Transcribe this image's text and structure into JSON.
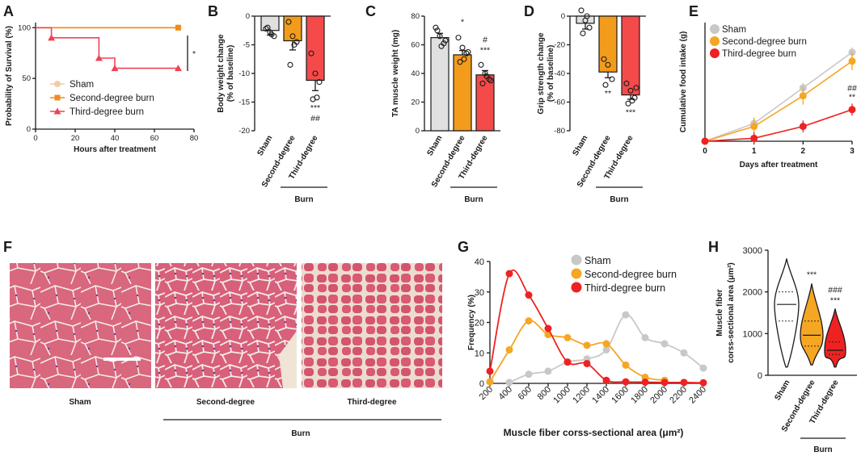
{
  "panels": {
    "A": {
      "label": "A"
    },
    "B": {
      "label": "B"
    },
    "C": {
      "label": "C"
    },
    "D": {
      "label": "D"
    },
    "E": {
      "label": "E"
    },
    "F": {
      "label": "F"
    },
    "G": {
      "label": "G"
    },
    "H": {
      "label": "H"
    }
  },
  "colors": {
    "sham": "#c8c8c8",
    "sham_bar": "#e0e0e0",
    "second": "#f5a623",
    "second_bar": "#f39c1b",
    "third": "#ee2222",
    "third_bar": "#f44a4a",
    "sham_survival": "#f0cda8",
    "second_survival": "#f08c1a",
    "third_survival": "#ee4455"
  },
  "histology": {
    "labels": [
      "Sham",
      "Second-degree",
      "Third-degree"
    ],
    "group_label": "Burn"
  },
  "chart_data": [
    {
      "id": "A",
      "type": "line",
      "subtype": "step",
      "xlabel": "Hours after treatment",
      "ylabel": "Probability of Survival (%)",
      "xlim": [
        0,
        80
      ],
      "ylim": [
        0,
        105
      ],
      "xticks": [
        "0",
        "20",
        "40",
        "60",
        "80"
      ],
      "yticks": [
        "0",
        "50",
        "100"
      ],
      "series": [
        {
          "name": "Sham",
          "x": [
            0,
            72
          ],
          "y": [
            100,
            100
          ]
        },
        {
          "name": "Second-degree burn",
          "x": [
            0,
            72
          ],
          "y": [
            100,
            100
          ]
        },
        {
          "name": "Third-degree burn",
          "x": [
            0,
            8,
            32,
            40,
            72
          ],
          "y": [
            100,
            90,
            70,
            60,
            60
          ]
        }
      ],
      "annotation": "*"
    },
    {
      "id": "B",
      "type": "bar",
      "ylabel": "Body weight change\n(% of baseline)",
      "ylim": [
        -20,
        0
      ],
      "yticks": [
        "0",
        "-5",
        "-10",
        "-15",
        "-20"
      ],
      "categories": [
        "Sham",
        "Second-degree",
        "Third-degree"
      ],
      "values": [
        -2.5,
        -4.3,
        -11.2
      ],
      "errors": [
        0.8,
        1.6,
        1.8
      ],
      "points": [
        [
          -2.2,
          -2.8,
          -3.5,
          -2.0,
          -3.2
        ],
        [
          -1.0,
          -3.5,
          -4.5,
          -8.5,
          -5.0
        ],
        [
          -6.5,
          -10.0,
          -11.5,
          -14.5,
          -14.2
        ]
      ],
      "significance": [
        "",
        "",
        "***\n##"
      ],
      "group_label": "Burn"
    },
    {
      "id": "C",
      "type": "bar",
      "ylabel": "TA muscle weight (mg)",
      "ylim": [
        0,
        80
      ],
      "yticks": [
        "0",
        "20",
        "40",
        "60",
        "80"
      ],
      "categories": [
        "Sham",
        "Second-degree",
        "Third-degree"
      ],
      "values": [
        65,
        53,
        39
      ],
      "errors": [
        3,
        3,
        3
      ],
      "points": [
        [
          72,
          66,
          61,
          70,
          59,
          63
        ],
        [
          65,
          58,
          54,
          48,
          50,
          55
        ],
        [
          46,
          40,
          36,
          33,
          38,
          35
        ]
      ],
      "significance": [
        "",
        "*",
        "#\n***"
      ],
      "group_label": "Burn"
    },
    {
      "id": "D",
      "type": "bar",
      "ylabel": "Grip strength change\n(% of baseline)",
      "ylim": [
        -80,
        0
      ],
      "yticks": [
        "0",
        "-20",
        "-40",
        "-60",
        "-80"
      ],
      "categories": [
        "Sham",
        "Second-degree",
        "Third-degree"
      ],
      "values": [
        -5,
        -39,
        -55
      ],
      "errors": [
        4,
        4,
        3
      ],
      "points": [
        [
          4,
          -3,
          -8,
          -12,
          0
        ],
        [
          -30,
          -34,
          -44,
          -48
        ],
        [
          -47,
          -52,
          -57,
          -61,
          -59,
          -50
        ]
      ],
      "significance": [
        "",
        "**",
        "***"
      ],
      "group_label": "Burn"
    },
    {
      "id": "E",
      "type": "line",
      "xlabel": "Days after treatment",
      "ylabel": "Cumulative food intake (g)",
      "xlim": [
        0,
        3
      ],
      "ylim": [
        0,
        12
      ],
      "xticks": [
        "0",
        "1",
        "2",
        "3"
      ],
      "series": [
        {
          "name": "Sham",
          "x": [
            0,
            1,
            2,
            3
          ],
          "y": [
            0,
            1.8,
            5.4,
            9.0
          ]
        },
        {
          "name": "Second-degree burn",
          "x": [
            0,
            1,
            2,
            3
          ],
          "y": [
            0,
            1.5,
            4.6,
            8.1
          ]
        },
        {
          "name": "Third-degree burn",
          "x": [
            0,
            1,
            2,
            3
          ],
          "y": [
            0,
            0.3,
            1.5,
            3.2
          ]
        }
      ],
      "significance": [
        "##",
        "**"
      ]
    },
    {
      "id": "G",
      "type": "line",
      "xlabel": "Muscle fiber corss-sectional area (μm²)",
      "ylabel": "Frequency (%)",
      "xlim": [
        200,
        2400
      ],
      "ylim": [
        0,
        40
      ],
      "xticks": [
        "200",
        "400",
        "600",
        "800",
        "1000",
        "1200",
        "1400",
        "1600",
        "1800",
        "2000",
        "2200",
        "2400"
      ],
      "yticks": [
        "0",
        "10",
        "20",
        "30",
        "40"
      ],
      "series": [
        {
          "name": "Sham",
          "x": [
            400,
            600,
            800,
            1000,
            1200,
            1400,
            1600,
            1800,
            2000,
            2200,
            2400
          ],
          "y": [
            0.3,
            3,
            4,
            7,
            8,
            11,
            22.5,
            15,
            13,
            10,
            5
          ]
        },
        {
          "name": "Second-degree burn",
          "x": [
            200,
            400,
            600,
            800,
            1000,
            1200,
            1400,
            1600,
            1800,
            2000
          ],
          "y": [
            0.5,
            11,
            20.5,
            16,
            15,
            12.5,
            13,
            6,
            2,
            1
          ]
        },
        {
          "name": "Third-degree burn",
          "x": [
            200,
            400,
            600,
            800,
            1000,
            1200,
            1400,
            1600,
            1800,
            2000,
            2200,
            2400
          ],
          "y": [
            4,
            36,
            29,
            18,
            7,
            6.5,
            1,
            0.5,
            0.4,
            0.3,
            0.3,
            0.2
          ]
        }
      ]
    },
    {
      "id": "H",
      "type": "violin",
      "ylabel": "Muscle fiber\ncorss-sectional area (μm²)",
      "ylim": [
        0,
        3000
      ],
      "yticks": [
        "0",
        "1000",
        "2000",
        "3000"
      ],
      "categories": [
        "Sham",
        "Second-degree",
        "Third-degree"
      ],
      "medians": [
        1700,
        960,
        600
      ],
      "quartiles": [
        [
          1300,
          2000
        ],
        [
          700,
          1300
        ],
        [
          500,
          800
        ]
      ],
      "ranges": [
        [
          200,
          2800
        ],
        [
          250,
          2200
        ],
        [
          200,
          1600
        ]
      ],
      "significance": [
        "",
        "***",
        "###\n***"
      ],
      "group_label": "Burn"
    }
  ]
}
